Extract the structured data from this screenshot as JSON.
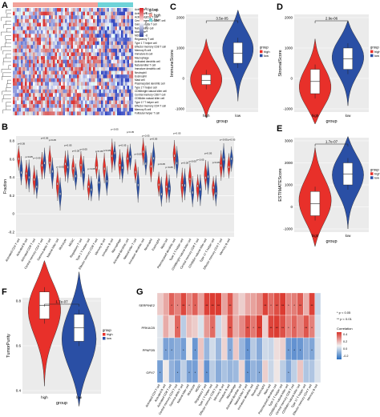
{
  "panels": {
    "A": "A",
    "B": "B",
    "C": "C",
    "D": "D",
    "E": "E",
    "F": "F",
    "G": "G"
  },
  "heatmap_a": {
    "legend_title": "group",
    "legend_items": [
      "high",
      "low"
    ],
    "scale_ticks": [
      "6",
      "4",
      "2",
      "0",
      "-2",
      "-4",
      "-6"
    ],
    "row_labels": [
      "Activated CD4 T cell",
      "Activated B cell",
      "Activated CD8 T cell",
      "Central memory CD4 T cell",
      "Gamma delta T cell",
      "Natural killer cell",
      "Monocyte",
      "MDSC",
      "Regulatory T cell",
      "Type 1 T helper cell",
      "Effector memory CD8 T cell",
      "Memory B cell",
      "Immature B cell",
      "Macrophage",
      "Activated dendritic cell",
      "Natural killer T cell",
      "Immature dendritic cell",
      "Neutrophil",
      "Eosinophil",
      "Mast cell",
      "Plasmacytoid dendritic cell",
      "Type 2 T helper cell",
      "CD56bright natural killer cell",
      "Central memory CD8 T cell",
      "CD56dim natural killer cell",
      "Type 17 T helper cell",
      "Effector memory CD4 T cell",
      "Memory B cell",
      "Follicular helper T cell"
    ]
  },
  "colors": {
    "high": "#e8302a",
    "low": "#2a4fa5"
  }
}
